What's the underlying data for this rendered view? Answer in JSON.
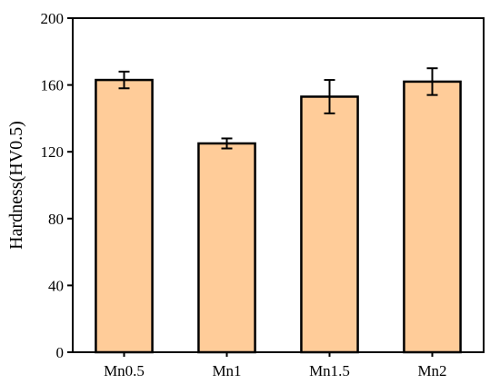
{
  "chart_data": {
    "type": "bar",
    "title": "",
    "xlabel": "",
    "ylabel": "Hardness(HV0.5)",
    "categories": [
      "Mn0.5",
      "Mn1",
      "Mn1.5",
      "Mn2"
    ],
    "values": [
      163,
      125,
      153,
      162
    ],
    "errors": [
      5,
      3,
      10,
      8
    ],
    "ylim": [
      0,
      200
    ],
    "yticks": [
      0,
      40,
      80,
      120,
      160,
      200
    ],
    "grid": false,
    "legend": "none",
    "colors": {
      "bar_fill": "#FFCC99",
      "bar_edge": "#000000",
      "axis": "#000000"
    }
  }
}
